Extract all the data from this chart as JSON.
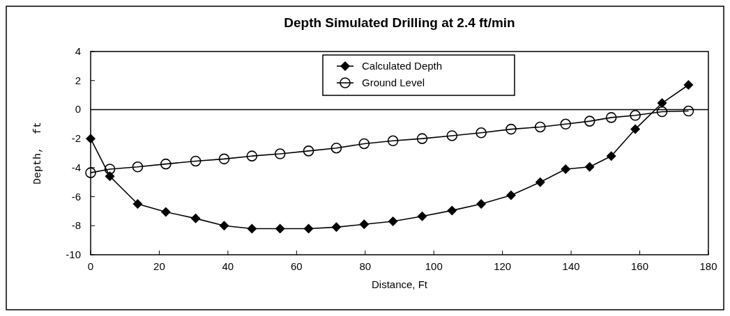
{
  "chart_data": {
    "type": "line",
    "title": "Depth Simulated Drilling at 2.4 ft/min",
    "xlabel": "Distance, Ft",
    "ylabel": "Depth,  ft",
    "x": [
      0,
      5.6,
      13.7,
      21.9,
      30.6,
      38.9,
      47,
      55.2,
      63.5,
      71.6,
      79.7,
      88.1,
      96.6,
      105.3,
      113.8,
      122.5,
      131,
      138.4,
      145.4,
      151.7,
      158.7,
      166.5,
      174.2
    ],
    "series": [
      {
        "name": "Calculated Depth",
        "color": "#000000",
        "marker": "diamond",
        "values": [
          -2,
          -4.6,
          -6.5,
          -7.05,
          -7.5,
          -8,
          -8.2,
          -8.2,
          -8.2,
          -8.1,
          -7.9,
          -7.7,
          -7.35,
          -6.95,
          -6.5,
          -5.9,
          -5,
          -4.1,
          -3.95,
          -3.2,
          -1.35,
          0.45,
          1.7
        ]
      },
      {
        "name": "Ground Level",
        "color": "#000000",
        "marker": "circle",
        "values": [
          -4.35,
          -4.1,
          -3.95,
          -3.75,
          -3.55,
          -3.4,
          -3.2,
          -3.05,
          -2.85,
          -2.65,
          -2.35,
          -2.15,
          -2,
          -1.8,
          -1.6,
          -1.35,
          -1.2,
          -1,
          -0.8,
          -0.55,
          -0.4,
          -0.15,
          -0.1
        ]
      }
    ],
    "xlim": [
      0,
      180
    ],
    "xticks": [
      0,
      20,
      40,
      60,
      80,
      100,
      120,
      140,
      160,
      180
    ],
    "ylim": [
      -10,
      4
    ],
    "yticks": [
      -10,
      -8,
      -6,
      -4,
      -2,
      0,
      2,
      4
    ],
    "ref_lines": [
      {
        "axis": "y",
        "value": 0,
        "color": "#000000"
      }
    ],
    "legend": "top",
    "grid": false
  }
}
